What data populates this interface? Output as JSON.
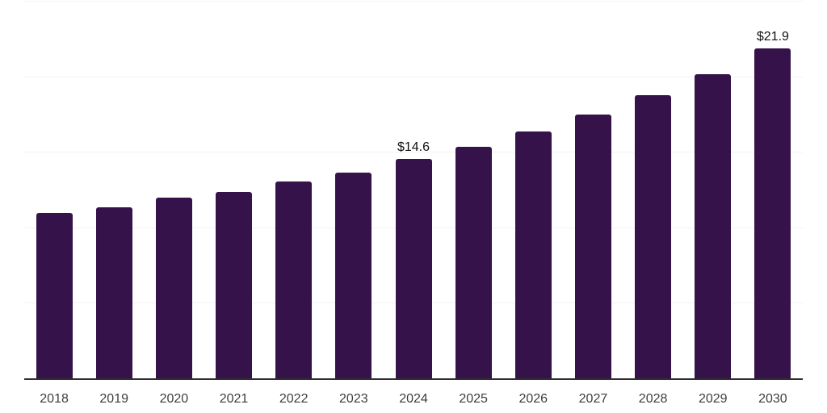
{
  "chart_data": {
    "type": "bar",
    "title": "",
    "xlabel": "",
    "ylabel": "",
    "categories": [
      "2018",
      "2019",
      "2020",
      "2021",
      "2022",
      "2023",
      "2024",
      "2025",
      "2026",
      "2027",
      "2028",
      "2029",
      "2030"
    ],
    "values": [
      11.0,
      11.4,
      12.0,
      12.4,
      13.1,
      13.7,
      14.6,
      15.4,
      16.4,
      17.5,
      18.8,
      20.2,
      21.9
    ],
    "value_labels": {
      "2024": "$14.6",
      "2030": "$21.9"
    },
    "ylim": [
      0,
      25
    ],
    "gridline_step": 5,
    "grid": true,
    "legend": false,
    "colors": {
      "bar": "#36124b",
      "gridline": "#f2f2f3",
      "axis_line": "#2f2f2f",
      "tick_label": "#3d3d3d",
      "value_label": "#111111",
      "background": "#ffffff"
    }
  }
}
